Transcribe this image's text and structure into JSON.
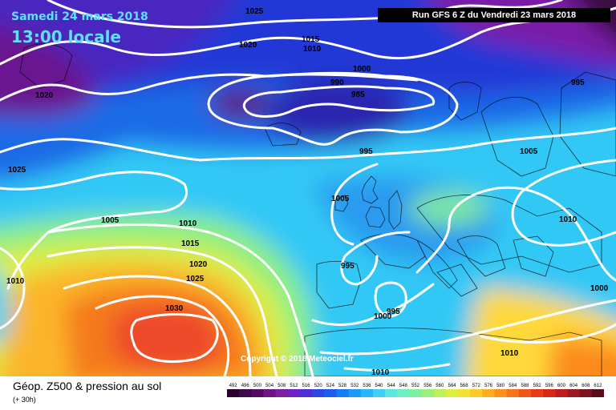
{
  "header": {
    "date": "Samedi 24 mars 2018",
    "time": "13:00 locale",
    "run_info": "Run GFS 6 Z du Vendredi 23 mars 2018"
  },
  "footer": {
    "title": "Géop. Z500 & pression au sol",
    "subtitle": "(+ 30h)",
    "copyright": "Copyright © 2018 Meteociel.fr"
  },
  "isobar_labels": [
    "1025",
    "1020",
    "1015",
    "1010",
    "1000",
    "990",
    "985",
    "995",
    "1020",
    "1025",
    "1005",
    "1005",
    "1010",
    "1015",
    "1020",
    "1025",
    "1030",
    "1010",
    "995",
    "995",
    "1000",
    "1005",
    "995",
    "1010",
    "1000",
    "1010",
    "1010"
  ],
  "scale": {
    "values": [
      "492",
      "496",
      "500",
      "504",
      "508",
      "512",
      "516",
      "520",
      "524",
      "528",
      "532",
      "536",
      "540",
      "544",
      "548",
      "552",
      "556",
      "560",
      "564",
      "568",
      "572",
      "576",
      "580",
      "584",
      "588",
      "592",
      "596",
      "600",
      "604",
      "608",
      "612"
    ],
    "colors": [
      "#2b0030",
      "#3d0a4a",
      "#560a63",
      "#6d1580",
      "#7f1da0",
      "#6b24c4",
      "#4d30d8",
      "#2d46e6",
      "#1d5cf0",
      "#147cf6",
      "#1a9bfb",
      "#26b7fd",
      "#3fd0f5",
      "#5be6e2",
      "#6cf0c4",
      "#7ef09e",
      "#9bef7a",
      "#bff05a",
      "#ddee42",
      "#f2e032",
      "#fbc92a",
      "#fdad22",
      "#fc921c",
      "#f77418",
      "#f15616",
      "#ea3a16",
      "#d82818",
      "#bf1c1c",
      "#9e1820",
      "#7c1422",
      "#5a0e1c"
    ]
  }
}
